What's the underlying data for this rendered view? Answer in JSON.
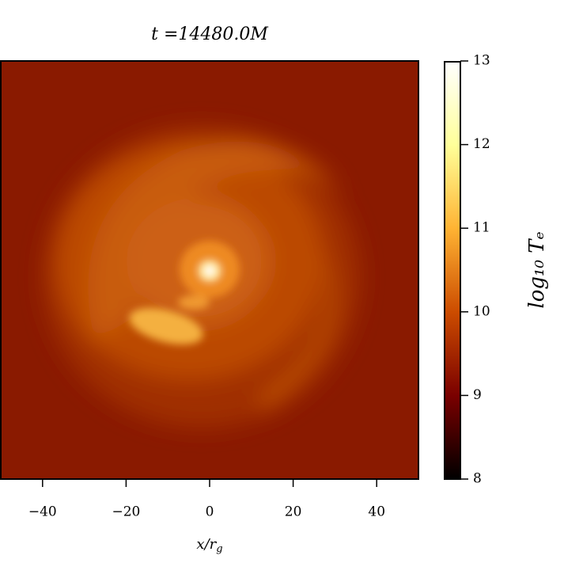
{
  "chart_data": {
    "type": "heatmap",
    "title": "t =14480.0M",
    "xlabel": "x/rg",
    "colorbar_label": "log₁₀ Tₑ",
    "xlim": [
      -50,
      50
    ],
    "xticks": [
      {
        "value": -40,
        "label": "−40"
      },
      {
        "value": -20,
        "label": "−20"
      },
      0,
      20,
      40
    ],
    "clim": [
      8,
      13
    ],
    "cticks": [
      8,
      9,
      10,
      11,
      12,
      13
    ],
    "colormap": "afmhot"
  }
}
